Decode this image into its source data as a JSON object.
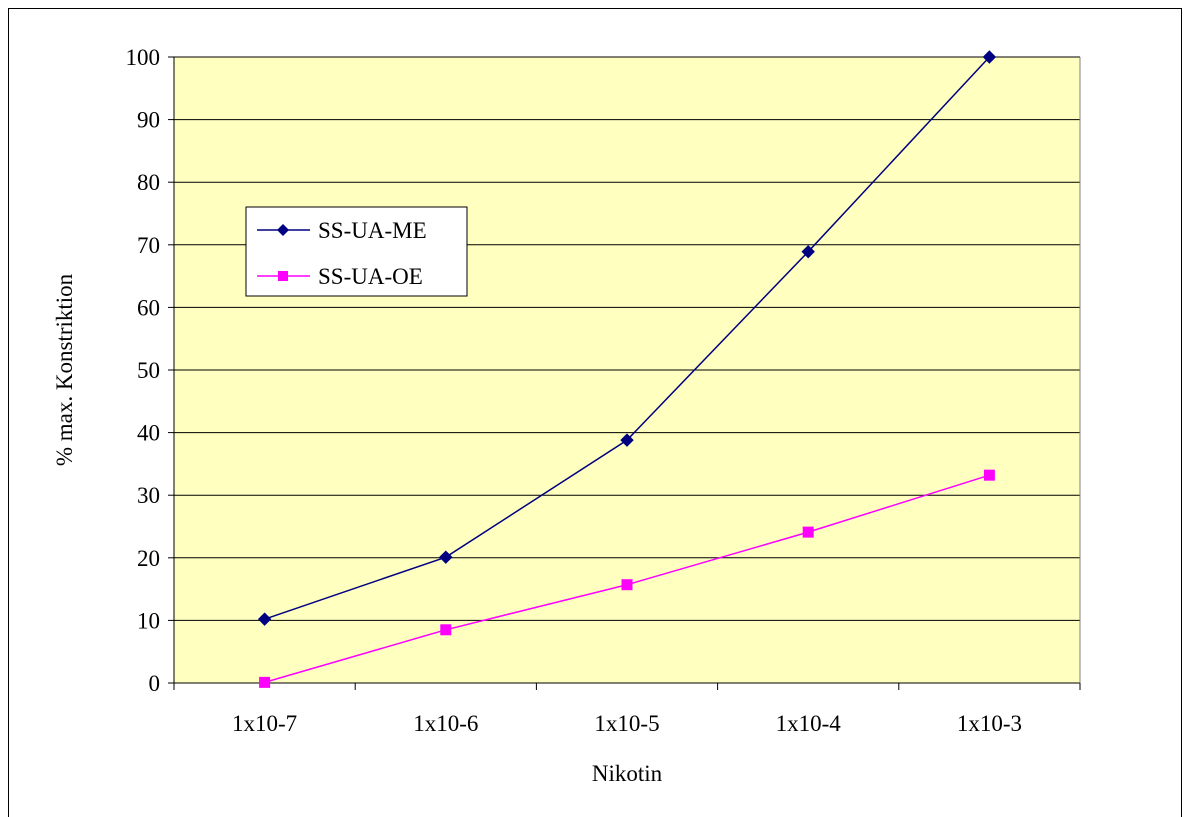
{
  "chart_data": {
    "type": "line",
    "title": "",
    "xlabel": "Nikotin",
    "ylabel": "% max. Konstriktion",
    "categories": [
      "1x10-7",
      "1x10-6",
      "1x10-5",
      "1x10-4",
      "1x10-3"
    ],
    "ylim": [
      0,
      100
    ],
    "yticks": [
      0,
      10,
      20,
      30,
      40,
      50,
      60,
      70,
      80,
      90,
      100
    ],
    "grid": true,
    "plot_background": "#ffffc0",
    "legend_placement": "upper-left inside plot",
    "series": [
      {
        "name": "SS-UA-ME",
        "color": "#000080",
        "marker": "diamond",
        "values": [
          10.2,
          20.1,
          38.8,
          68.9,
          100
        ]
      },
      {
        "name": "SS-UA-OE",
        "color": "#ff00ff",
        "marker": "square",
        "values": [
          0.1,
          8.5,
          15.7,
          24.1,
          33.2
        ]
      }
    ]
  }
}
